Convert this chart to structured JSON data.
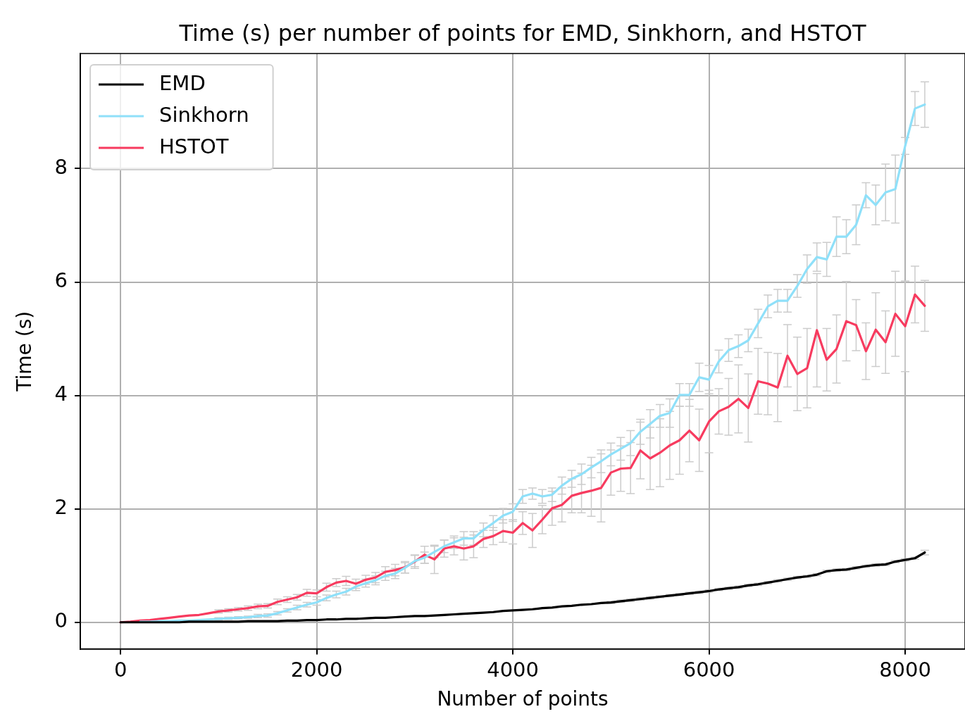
{
  "chart_data": {
    "type": "line",
    "title": "Time (s) per number of points for EMD, Sinkhorn, and HSTOT",
    "xlabel": "Number of points",
    "ylabel": "Time (s)",
    "x": [
      0,
      100,
      200,
      300,
      400,
      500,
      600,
      700,
      800,
      900,
      1000,
      1100,
      1200,
      1300,
      1400,
      1500,
      1600,
      1700,
      1800,
      1900,
      2000,
      2100,
      2200,
      2300,
      2400,
      2500,
      2600,
      2700,
      2800,
      2900,
      3000,
      3100,
      3200,
      3300,
      3400,
      3500,
      3600,
      3700,
      3800,
      3900,
      4000,
      4100,
      4200,
      4300,
      4400,
      4500,
      4600,
      4700,
      4800,
      4900,
      5000,
      5100,
      5200,
      5300,
      5400,
      5500,
      5600,
      5700,
      5800,
      5900,
      6000,
      6100,
      6200,
      6300,
      6400,
      6500,
      6600,
      6700,
      6800,
      6900,
      7000,
      7100,
      7200,
      7300,
      7400,
      7500,
      7600,
      7700,
      7800,
      7900,
      8000,
      8100,
      8200
    ],
    "series": [
      {
        "name": "EMD",
        "color": "#000000",
        "values": [
          0,
          0,
          0,
          0,
          0,
          0,
          0,
          0.01,
          0.01,
          0.01,
          0.01,
          0.01,
          0.01,
          0.02,
          0.02,
          0.02,
          0.02,
          0.03,
          0.03,
          0.04,
          0.04,
          0.05,
          0.05,
          0.06,
          0.06,
          0.07,
          0.08,
          0.08,
          0.09,
          0.1,
          0.11,
          0.11,
          0.12,
          0.13,
          0.14,
          0.15,
          0.16,
          0.17,
          0.18,
          0.2,
          0.21,
          0.22,
          0.23,
          0.25,
          0.26,
          0.28,
          0.29,
          0.31,
          0.32,
          0.34,
          0.35,
          0.37,
          0.39,
          0.41,
          0.43,
          0.45,
          0.47,
          0.49,
          0.51,
          0.53,
          0.55,
          0.58,
          0.6,
          0.62,
          0.65,
          0.67,
          0.7,
          0.73,
          0.76,
          0.79,
          0.81,
          0.84,
          0.9,
          0.92,
          0.93,
          0.96,
          0.99,
          1.01,
          1.02,
          1.07,
          1.1,
          1.13,
          1.23
        ],
        "errors": [
          null,
          null,
          null,
          null,
          null,
          null,
          null,
          null,
          null,
          null,
          null,
          null,
          null,
          null,
          null,
          null,
          null,
          null,
          null,
          null,
          null,
          null,
          null,
          null,
          null,
          null,
          null,
          null,
          null,
          null,
          null,
          null,
          null,
          null,
          null,
          null,
          null,
          null,
          null,
          null,
          null,
          null,
          null,
          null,
          null,
          null,
          null,
          null,
          null,
          null,
          0.02,
          0.02,
          0.02,
          0.02,
          0.02,
          0.02,
          0.02,
          0.02,
          0.02,
          0.02,
          0.02,
          0.02,
          0.02,
          0.02,
          0.02,
          0.02,
          0.02,
          0.02,
          0.02,
          0.02,
          0.02,
          0.02,
          0.02,
          0.02,
          0.02,
          0.02,
          0.02,
          0.02,
          0.02,
          0.02,
          0.02,
          0.02,
          0.04
        ]
      },
      {
        "name": "Sinkhorn",
        "color": "#8fe0f9",
        "values": [
          null,
          null,
          0.01,
          0.01,
          0.02,
          0.02,
          0.03,
          0.03,
          0.04,
          0.05,
          0.06,
          0.07,
          0.08,
          0.09,
          0.11,
          0.12,
          0.16,
          0.21,
          0.26,
          0.31,
          0.35,
          0.43,
          0.49,
          0.54,
          0.63,
          0.69,
          0.74,
          0.82,
          0.86,
          0.96,
          1.08,
          1.14,
          1.24,
          1.34,
          1.41,
          1.48,
          1.48,
          1.63,
          1.75,
          1.88,
          1.95,
          2.22,
          2.27,
          2.22,
          2.25,
          2.41,
          2.53,
          2.61,
          2.73,
          2.84,
          2.96,
          3.06,
          3.16,
          3.36,
          3.5,
          3.64,
          3.69,
          4.01,
          4.01,
          4.32,
          4.28,
          4.6,
          4.8,
          4.87,
          4.97,
          5.27,
          5.57,
          5.67,
          5.67,
          5.93,
          6.23,
          6.44,
          6.4,
          6.8,
          6.8,
          7.01,
          7.53,
          7.36,
          7.58,
          7.64,
          8.4,
          9.06,
          9.13
        ],
        "errors": [
          null,
          null,
          null,
          null,
          null,
          null,
          null,
          null,
          null,
          null,
          0.02,
          0.02,
          0.02,
          0.02,
          0.03,
          0.03,
          0.03,
          0.03,
          0.04,
          0.04,
          0.05,
          0.05,
          0.06,
          0.06,
          0.07,
          0.07,
          0.08,
          0.08,
          0.09,
          0.09,
          0.1,
          0.1,
          0.1,
          0.11,
          0.11,
          0.12,
          0.12,
          0.12,
          0.13,
          0.13,
          0.14,
          0.12,
          0.1,
          0.12,
          0.12,
          0.15,
          0.15,
          0.18,
          0.18,
          0.2,
          0.2,
          0.2,
          0.22,
          0.22,
          0.25,
          0.2,
          0.25,
          0.2,
          0.2,
          0.25,
          0.25,
          0.2,
          0.2,
          0.2,
          0.2,
          0.25,
          0.2,
          0.2,
          0.2,
          0.2,
          0.25,
          0.25,
          0.3,
          0.35,
          0.3,
          0.35,
          0.22,
          0.35,
          0.5,
          0.6,
          0.15,
          0.3,
          0.4
        ]
      },
      {
        "name": "HSTOT",
        "color": "#f73b5f",
        "values": [
          0,
          0.01,
          0.03,
          0.04,
          0.06,
          0.08,
          0.1,
          0.12,
          0.13,
          0.16,
          0.19,
          0.21,
          0.23,
          0.25,
          0.28,
          0.29,
          0.36,
          0.4,
          0.44,
          0.52,
          0.51,
          0.62,
          0.7,
          0.73,
          0.68,
          0.75,
          0.79,
          0.89,
          0.92,
          0.97,
          1.07,
          1.19,
          1.11,
          1.3,
          1.34,
          1.3,
          1.34,
          1.47,
          1.52,
          1.61,
          1.58,
          1.75,
          1.62,
          1.81,
          2.01,
          2.07,
          2.23,
          2.28,
          2.32,
          2.37,
          2.64,
          2.71,
          2.72,
          3.03,
          2.89,
          2.99,
          3.12,
          3.21,
          3.38,
          3.21,
          3.54,
          3.72,
          3.8,
          3.94,
          3.78,
          4.25,
          4.21,
          4.14,
          4.7,
          4.38,
          4.48,
          5.15,
          4.63,
          4.82,
          5.31,
          5.24,
          4.78,
          5.16,
          4.94,
          5.44,
          5.22,
          5.78,
          5.58
        ],
        "errors": [
          null,
          null,
          null,
          null,
          null,
          null,
          null,
          null,
          null,
          null,
          0.03,
          0.03,
          0.03,
          0.04,
          0.04,
          0.04,
          0.05,
          0.05,
          0.05,
          0.06,
          0.06,
          0.07,
          0.07,
          0.08,
          0.08,
          0.08,
          0.09,
          0.09,
          0.1,
          0.1,
          0.12,
          0.15,
          0.25,
          0.15,
          0.15,
          0.2,
          0.2,
          0.15,
          0.15,
          0.2,
          0.2,
          0.2,
          0.3,
          0.25,
          0.3,
          0.3,
          0.3,
          0.35,
          0.45,
          0.6,
          0.4,
          0.4,
          0.45,
          0.5,
          0.55,
          0.6,
          0.6,
          0.6,
          0.55,
          0.55,
          0.55,
          0.4,
          0.5,
          0.6,
          0.6,
          0.58,
          0.55,
          0.6,
          0.55,
          0.65,
          0.7,
          1.0,
          0.55,
          0.6,
          0.7,
          0.45,
          0.5,
          0.65,
          0.55,
          0.75,
          0.8,
          0.5,
          0.45
        ]
      }
    ],
    "xlim": [
      -410,
      8610
    ],
    "ylim": [
      -0.47,
      10.03
    ],
    "xticks": [
      0,
      2000,
      4000,
      6000,
      8000
    ],
    "yticks": [
      0,
      2,
      4,
      6,
      8
    ],
    "grid": true,
    "legend": "top left",
    "marker": "none",
    "line_style": "solid"
  }
}
